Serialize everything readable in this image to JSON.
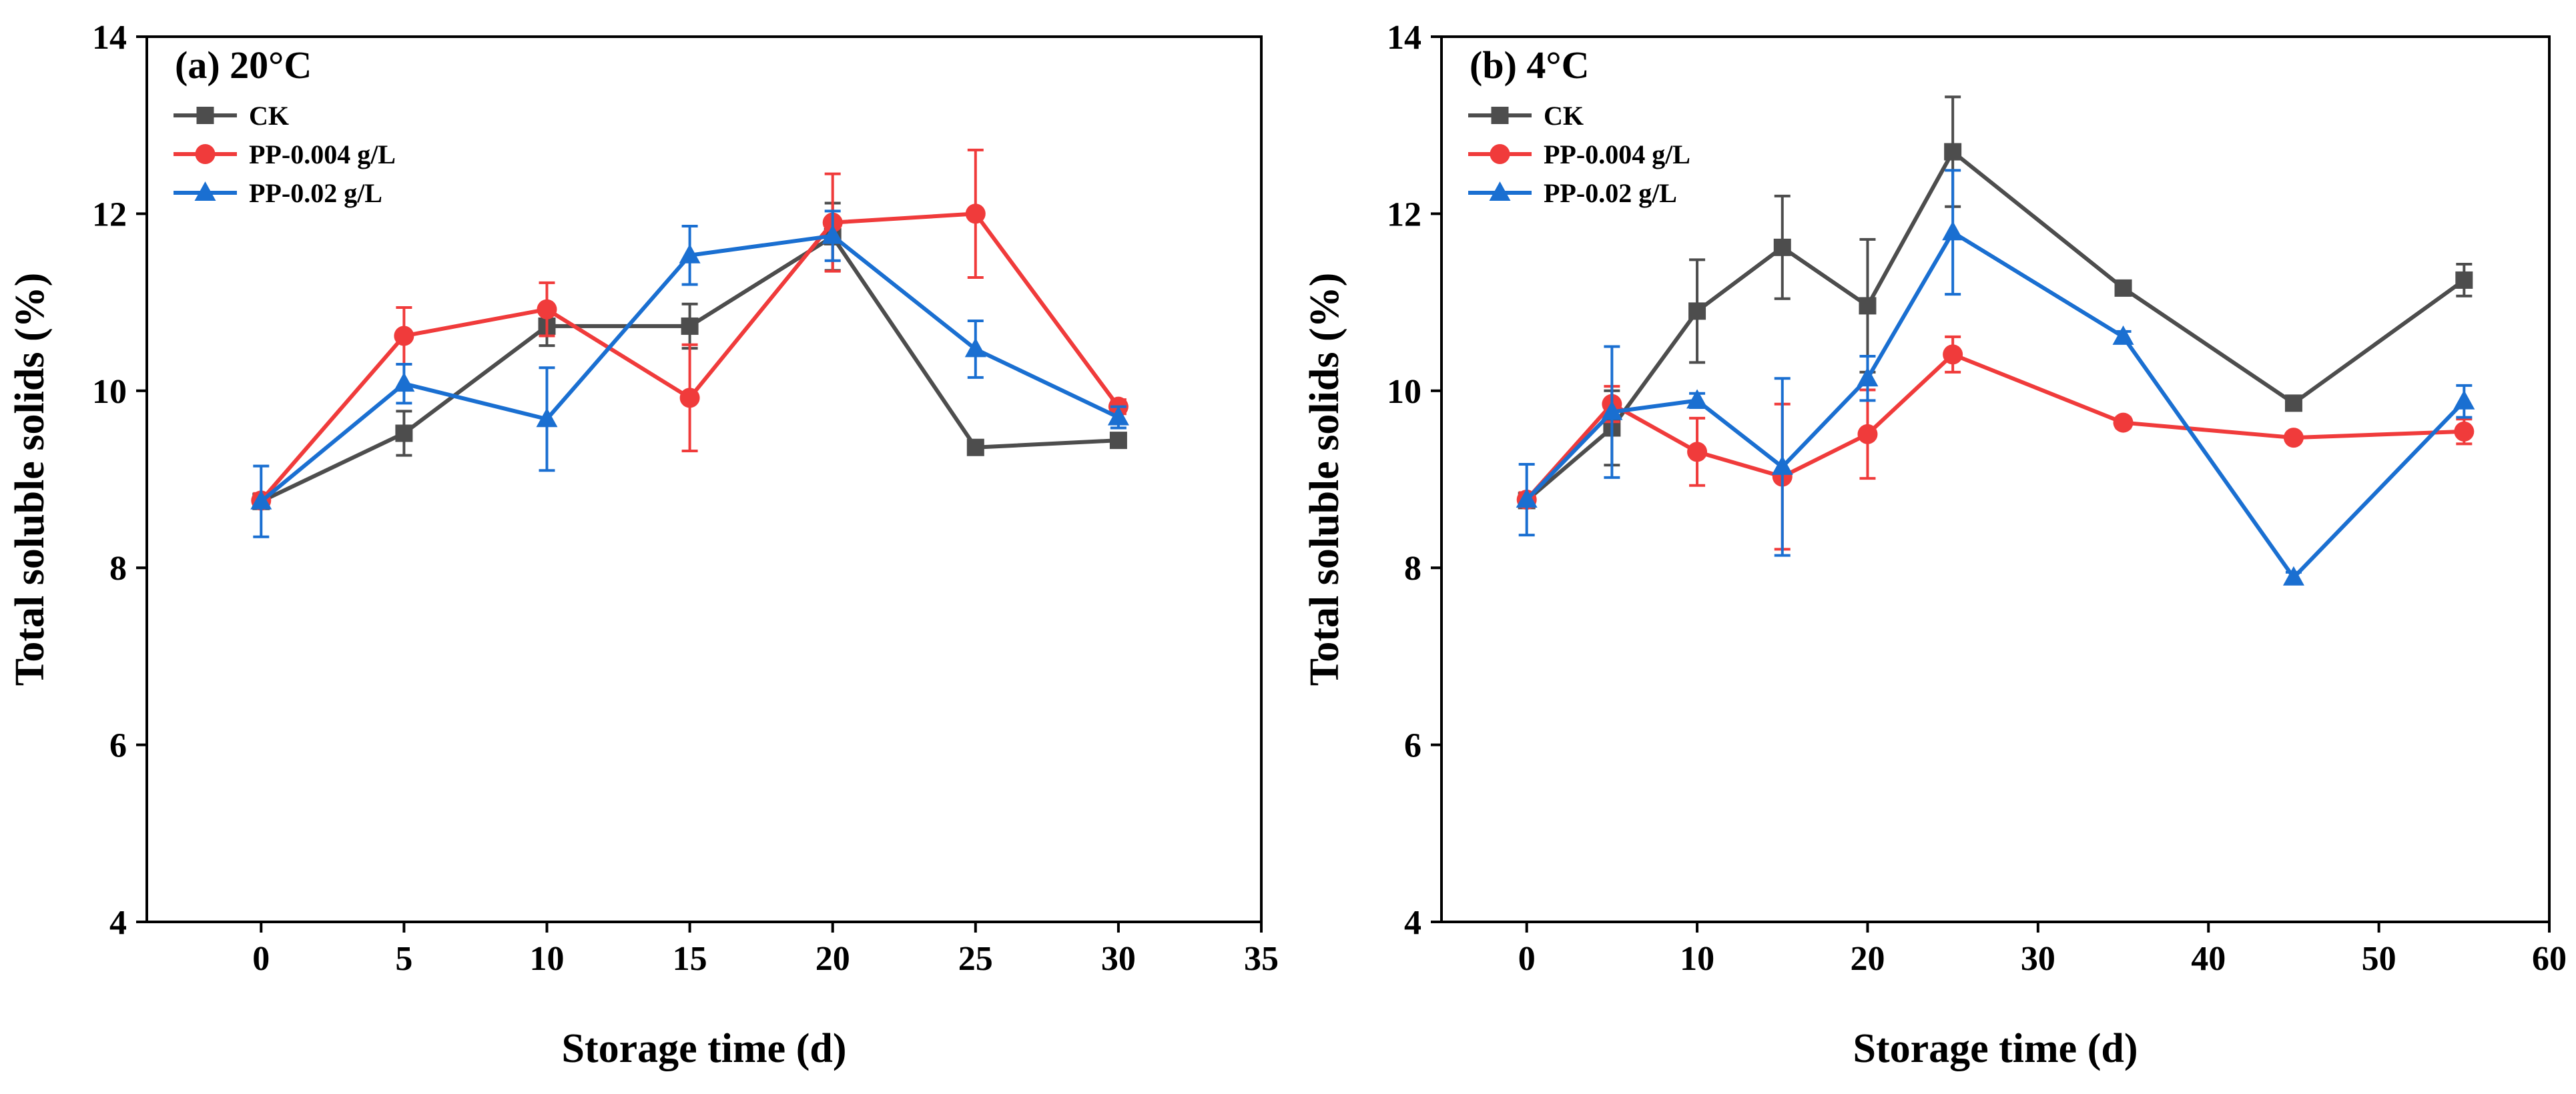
{
  "chart_data": [
    {
      "type": "line",
      "title": "(a) 20°C",
      "xlabel": "Storage time (d)",
      "ylabel": "Total soluble solids (%)",
      "xlim": [
        -4,
        35
      ],
      "ylim": [
        4,
        14
      ],
      "xticks": [
        0,
        5,
        10,
        15,
        20,
        25,
        30,
        35
      ],
      "yticks": [
        4,
        6,
        8,
        10,
        12,
        14
      ],
      "legend_position": "top-left",
      "series": [
        {
          "name": "CK",
          "color": "#4d4d4d",
          "marker": "square",
          "x": [
            0,
            5,
            10,
            15,
            20,
            25,
            30
          ],
          "y": [
            8.75,
            9.52,
            10.73,
            10.73,
            11.74,
            9.36,
            9.44
          ],
          "err": [
            0.08,
            0.25,
            0.22,
            0.25,
            0.38,
            0.05,
            0.08
          ]
        },
        {
          "name": "PP-0.004 g/L",
          "color": "#f03b3b",
          "marker": "circle",
          "x": [
            0,
            5,
            10,
            15,
            20,
            25,
            30
          ],
          "y": [
            8.76,
            10.62,
            10.92,
            9.92,
            11.9,
            12.0,
            9.82
          ],
          "err": [
            0.08,
            0.32,
            0.3,
            0.6,
            0.55,
            0.72,
            0.08
          ]
        },
        {
          "name": "PP-0.02 g/L",
          "color": "#1a6fd1",
          "marker": "triangle",
          "x": [
            0,
            5,
            10,
            15,
            20,
            25,
            30
          ],
          "y": [
            8.75,
            10.08,
            9.68,
            11.53,
            11.75,
            10.47,
            9.7
          ],
          "err": [
            0.4,
            0.22,
            0.58,
            0.33,
            0.28,
            0.32,
            0.12
          ]
        }
      ]
    },
    {
      "type": "line",
      "title": "(b) 4°C",
      "xlabel": "Storage time (d)",
      "ylabel": "Total soluble solids (%)",
      "xlim": [
        -5,
        60
      ],
      "ylim": [
        4,
        14
      ],
      "xticks": [
        0,
        10,
        20,
        30,
        40,
        50,
        60
      ],
      "yticks": [
        4,
        6,
        8,
        10,
        12,
        14
      ],
      "legend_position": "top-left",
      "series": [
        {
          "name": "CK",
          "color": "#4d4d4d",
          "marker": "square",
          "x": [
            0,
            5,
            10,
            15,
            20,
            25,
            35,
            45,
            55
          ],
          "y": [
            8.76,
            9.58,
            10.9,
            11.62,
            10.96,
            12.7,
            11.16,
            9.86,
            11.25
          ],
          "err": [
            0.08,
            0.42,
            0.58,
            0.58,
            0.75,
            0.62,
            0.07,
            0.07,
            0.18
          ]
        },
        {
          "name": "PP-0.004 g/L",
          "color": "#f03b3b",
          "marker": "circle",
          "x": [
            0,
            5,
            10,
            15,
            20,
            25,
            35,
            45,
            55
          ],
          "y": [
            8.77,
            9.85,
            9.31,
            9.03,
            9.51,
            10.41,
            9.64,
            9.47,
            9.54
          ],
          "err": [
            0.08,
            0.2,
            0.38,
            0.82,
            0.5,
            0.2,
            0.06,
            0.05,
            0.14
          ]
        },
        {
          "name": "PP-0.02 g/L",
          "color": "#1a6fd1",
          "marker": "triangle",
          "x": [
            0,
            5,
            10,
            15,
            20,
            25,
            35,
            45,
            55
          ],
          "y": [
            8.77,
            9.76,
            9.89,
            9.14,
            10.14,
            11.79,
            10.61,
            7.89,
            9.88
          ],
          "err": [
            0.4,
            0.74,
            0.08,
            1.0,
            0.25,
            0.7,
            0.06,
            0.06,
            0.18
          ]
        }
      ]
    }
  ]
}
